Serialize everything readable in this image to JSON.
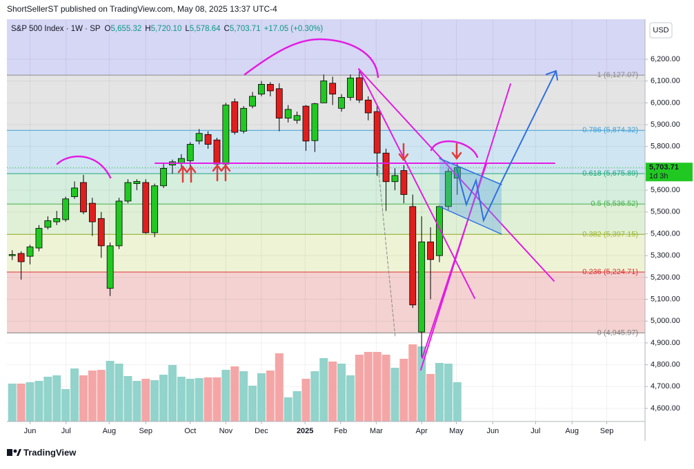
{
  "header": "ShortSellerST published on TradingView.com, May 08, 2025 13:37 UTC-4",
  "footer": "TradingView",
  "chart_data": {
    "type": "candlestick",
    "legend": {
      "symbol": "S&P 500 Index · 1W · SP",
      "fields": [
        {
          "key": "O",
          "value": "5,655.32"
        },
        {
          "key": "H",
          "value": "5,720.10"
        },
        {
          "key": "L",
          "value": "5,578.64"
        },
        {
          "key": "C",
          "value": "5,703.71"
        }
      ],
      "change": "+17.05 (+0.30%)"
    },
    "currency": "USD",
    "last_price_label": "5,703.71",
    "countdown": "1d 3h",
    "up_color": "#22c822",
    "down_color": "#e01e1e",
    "volume_up_color": "#92d3cb",
    "volume_down_color": "#f4a6a6",
    "grid": true,
    "candles": {
      "open": [
        5300,
        5310,
        5297,
        5335,
        5430,
        5455,
        5465,
        5570,
        5635,
        5540,
        5470,
        5150,
        5345,
        5550,
        5630,
        5635,
        5405,
        5620,
        5715,
        5725,
        5735,
        5825,
        5855,
        5830,
        5720,
        6005,
        5870,
        5985,
        6040,
        6085,
        6065,
        5930,
        5920,
        5985,
        5827,
        6000,
        6090,
        5975,
        6025,
        6115,
        6013,
        5960,
        5770,
        5639,
        5690,
        5525,
        4950,
        5363,
        5300,
        5525,
        5655.32
      ],
      "high": [
        5325,
        5320,
        5350,
        5440,
        5480,
        5505,
        5570,
        5640,
        5670,
        5565,
        5500,
        5360,
        5565,
        5650,
        5650,
        5650,
        5630,
        5720,
        5740,
        5765,
        5820,
        5880,
        5870,
        5840,
        6000,
        6020,
        5985,
        6050,
        6100,
        6095,
        6090,
        5990,
        5960,
        5990,
        6000,
        6130,
        6120,
        6040,
        6130,
        6147,
        6030,
        5990,
        5790,
        5700,
        5715,
        5580,
        5480,
        5430,
        5530,
        5700,
        5720.1
      ],
      "low": [
        5280,
        5190,
        5260,
        5320,
        5420,
        5440,
        5455,
        5560,
        5490,
        5390,
        5290,
        5115,
        5330,
        5540,
        5600,
        5400,
        5385,
        5610,
        5675,
        5705,
        5695,
        5810,
        5790,
        5700,
        5700,
        5855,
        5860,
        5975,
        6030,
        6030,
        5870,
        5910,
        5905,
        5780,
        5775,
        6010,
        5990,
        5960,
        6010,
        6000,
        5920,
        5666,
        5505,
        5600,
        5540,
        5060,
        4835,
        5100,
        5270,
        5510,
        5578.64
      ],
      "close": [
        5305,
        5272,
        5340,
        5425,
        5460,
        5470,
        5560,
        5610,
        5500,
        5455,
        5345,
        5345,
        5550,
        5635,
        5640,
        5405,
        5620,
        5700,
        5730,
        5745,
        5810,
        5860,
        5810,
        5720,
        5990,
        5865,
        5975,
        6030,
        6085,
        6055,
        5930,
        5970,
        5942,
        5825,
        5996,
        6101,
        6040,
        6025,
        6114,
        6013,
        5954,
        5770,
        5639,
        5667,
        5580,
        5074,
        5363,
        5282,
        5525,
        5686,
        5703.71
      ],
      "volume": [
        55,
        55,
        57,
        59,
        65,
        67,
        47,
        77,
        67,
        74,
        75,
        88,
        84,
        66,
        59,
        62,
        60,
        68,
        82,
        65,
        62,
        63,
        64,
        64,
        75,
        80,
        73,
        52,
        70,
        74,
        99,
        35,
        44,
        62,
        73,
        92,
        87,
        84,
        67,
        97,
        101,
        101,
        97,
        78,
        91,
        112,
        109,
        69,
        85,
        84,
        57
      ]
    },
    "xlim": [
      -0.6,
      71.1
    ],
    "xticks": [
      {
        "value": 2.0,
        "label": "Jun"
      },
      {
        "value": 6.05,
        "label": "Jul"
      },
      {
        "value": 10.9,
        "label": "Aug"
      },
      {
        "value": 15.0,
        "label": "Sep"
      },
      {
        "value": 20.0,
        "label": "Oct"
      },
      {
        "value": 24.0,
        "label": "Nov"
      },
      {
        "value": 28.0,
        "label": "Dec"
      },
      {
        "value": 32.9,
        "label": "2025"
      },
      {
        "value": 36.9,
        "label": "Feb"
      },
      {
        "value": 40.9,
        "label": "Mar"
      },
      {
        "value": 46.0,
        "label": "Apr"
      },
      {
        "value": 49.9,
        "label": "May"
      },
      {
        "value": 54.0,
        "label": "Jun"
      },
      {
        "value": 58.8,
        "label": "Jul"
      },
      {
        "value": 62.9,
        "label": "Aug"
      },
      {
        "value": 66.8,
        "label": "Sep"
      }
    ],
    "ylim": [
      4540,
      6383
    ],
    "yticks": [
      {
        "value": 4600,
        "label": "4,600.00"
      },
      {
        "value": 4700,
        "label": "4,700.00"
      },
      {
        "value": 4800,
        "label": "4,800.00"
      },
      {
        "value": 4900,
        "label": "4,900.00"
      },
      {
        "value": 5000,
        "label": "5,000.00"
      },
      {
        "value": 5100,
        "label": "5,100.00"
      },
      {
        "value": 5200,
        "label": "5,200.00"
      },
      {
        "value": 5300,
        "label": "5,300.00"
      },
      {
        "value": 5400,
        "label": "5,400.00"
      },
      {
        "value": 5500,
        "label": "5,500.00"
      },
      {
        "value": 5600,
        "label": "5,600.00"
      },
      {
        "value": 5700,
        "label": "5,700.00"
      },
      {
        "value": 5800,
        "label": "5,800.00"
      },
      {
        "value": 5900,
        "label": "5,900.00"
      },
      {
        "value": 6000,
        "label": "6,000.00"
      },
      {
        "value": 6100,
        "label": "6,100.00"
      },
      {
        "value": 6200,
        "label": "6,200.00"
      }
    ],
    "fib_top_fill": "#d6d6f5",
    "fib_levels": [
      {
        "label": "1 (6,127.07)",
        "value": 6127.07,
        "color": "#8a8a8a",
        "fill": "#e4e4e4"
      },
      {
        "label": "0.786 (5,874.32)",
        "value": 5874.32,
        "color": "#3c9fd6",
        "fill": "#cfe5f2"
      },
      {
        "label": "0.618 (5,675.89)",
        "value": 5675.89,
        "color": "#1fa87a",
        "fill": "#d5eedd"
      },
      {
        "label": "0.5 (5,536.52)",
        "value": 5536.52,
        "color": "#46b04a",
        "fill": "#dff0d6"
      },
      {
        "label": "0.382 (5,397.15)",
        "value": 5397.15,
        "color": "#9bb52a",
        "fill": "#eef3d6"
      },
      {
        "label": "0.236 (5,224.71)",
        "value": 5224.71,
        "color": "#dd3030",
        "fill": "#f4d2d2"
      },
      {
        "label": "0 (4,945.97)",
        "value": 4945.97,
        "color": "#808080"
      }
    ]
  }
}
